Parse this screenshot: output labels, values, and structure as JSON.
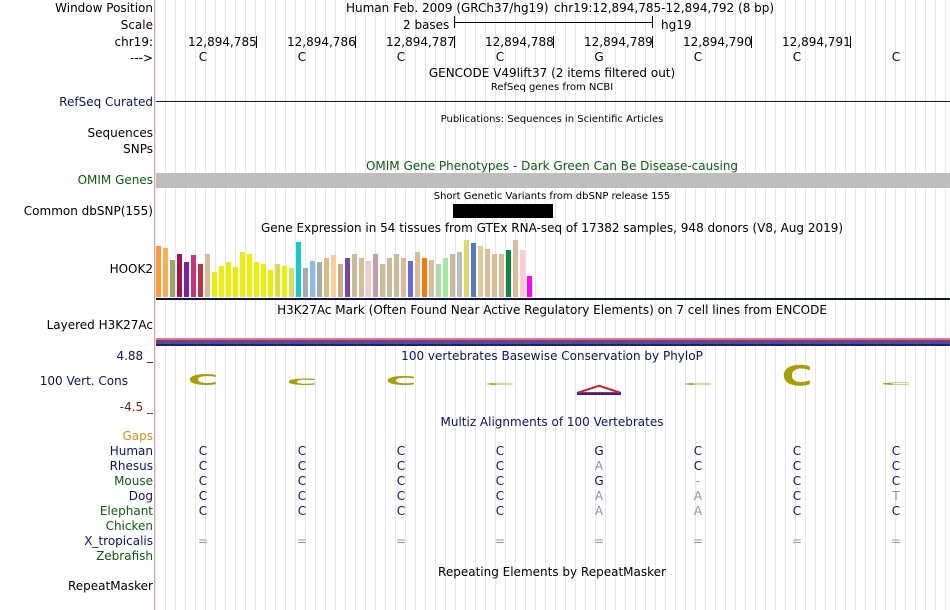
{
  "labels": {
    "window_position": "Window Position",
    "scale": "Scale",
    "chr": "chr19:",
    "arrow": "--->",
    "refseq": "RefSeq Curated",
    "sequences": "Sequences",
    "snps": "SNPs",
    "omim": "OMIM Genes",
    "dbsnp": "Common dbSNP(155)",
    "hook2": "HOOK2",
    "h3k27ac": "Layered H3K27Ac",
    "cons_max": "4.88 _",
    "cons": "100 Vert. Cons",
    "cons_min": "-4.5 _",
    "gaps": "Gaps"
  },
  "header": {
    "assembly": "Human Feb. 2009 (GRCh37/hg19)",
    "position": "chr19:12,894,785-12,894,792 (8 bp)",
    "scale_text": "2 bases",
    "scale_db": "hg19",
    "coords": [
      "12,894,785",
      "12,894,786",
      "12,894,787",
      "12,894,788",
      "12,894,789",
      "12,894,790",
      "12,894,791"
    ],
    "bases": [
      "C",
      "C",
      "C",
      "C",
      "G",
      "C",
      "C",
      "C"
    ]
  },
  "tracks": {
    "gencode": "GENCODE V49lift37 (2 items filtered out)",
    "refseq_sub": "RefSeq genes from NCBI",
    "publications": "Publications: Sequences in Scientific Articles",
    "omim_title": "OMIM Gene Phenotypes - Dark Green Can Be Disease-causing",
    "dbsnp_title": "Short Genetic Variants from dbSNP release 155",
    "gtex_title": "Gene Expression in 54 tissues from GTEx RNA-seq of 17382 samples, 948 donors (V8, Aug 2019)",
    "h3k27ac_title": "H3K27Ac Mark (Often Found Near Active Regulatory Elements) on 7 cell lines from ENCODE",
    "phylop_title": "100 vertebrates Basewise Conservation by PhyloP",
    "multiz_title": "Multiz Alignments of 100 Vertebrates",
    "repeat_title": "Repeating Elements by RepeatMasker",
    "repeat_label": "RepeatMasker"
  },
  "alignment": [
    {
      "species": "Human",
      "color": "#101070",
      "bases": [
        "C",
        "C",
        "C",
        "C",
        "G",
        "C",
        "C",
        "C"
      ]
    },
    {
      "species": "Rhesus",
      "color": "#101070",
      "bases": [
        "C",
        "C",
        "C",
        "C",
        "A",
        "C",
        "C",
        "C"
      ]
    },
    {
      "species": "Mouse",
      "color": "#0a5d0a",
      "bases": [
        "C",
        "C",
        "C",
        "C",
        "G",
        "-",
        "C",
        "C"
      ]
    },
    {
      "species": "Dog",
      "color": "#101070",
      "bases": [
        "C",
        "C",
        "C",
        "C",
        "A",
        "A",
        "C",
        "T"
      ]
    },
    {
      "species": "Elephant",
      "color": "#0a5d0a",
      "bases": [
        "C",
        "C",
        "C",
        "C",
        "A",
        "A",
        "C",
        "C"
      ]
    },
    {
      "species": "Chicken",
      "color": "#0a5d0a",
      "bases": [
        "",
        "",
        "",
        "",
        "",
        "",
        "",
        ""
      ]
    },
    {
      "species": "X_tropicalis",
      "color": "#101070",
      "bases": [
        "=",
        "=",
        "=",
        "=",
        "=",
        "=",
        "=",
        "="
      ]
    },
    {
      "species": "Zebrafish",
      "color": "#0a5d0a",
      "bases": [
        "",
        "",
        "",
        "",
        "",
        "",
        "",
        ""
      ]
    }
  ],
  "alignment_dim": [
    [
      false,
      false,
      false,
      false,
      false,
      false,
      false,
      false
    ],
    [
      false,
      false,
      false,
      false,
      true,
      false,
      false,
      false
    ],
    [
      false,
      false,
      false,
      false,
      false,
      true,
      false,
      false
    ],
    [
      false,
      false,
      false,
      false,
      true,
      true,
      false,
      true
    ],
    [
      false,
      false,
      false,
      false,
      true,
      true,
      false,
      false
    ],
    [
      false,
      false,
      false,
      false,
      false,
      false,
      false,
      false
    ],
    [
      true,
      true,
      true,
      true,
      true,
      true,
      true,
      true
    ],
    [
      false,
      false,
      false,
      false,
      false,
      false,
      false,
      false
    ]
  ],
  "gtex": {
    "values": [
      0.85,
      0.82,
      0.62,
      0.72,
      0.58,
      0.7,
      0.55,
      0.72,
      0.42,
      0.52,
      0.58,
      0.5,
      0.75,
      0.72,
      0.58,
      0.55,
      0.45,
      0.55,
      0.52,
      0.48,
      0.92,
      0.48,
      0.6,
      0.58,
      0.65,
      0.7,
      0.55,
      0.65,
      0.72,
      0.65,
      0.6,
      0.72,
      0.55,
      0.65,
      0.72,
      0.65,
      0.6,
      0.75,
      0.65,
      0.62,
      0.55,
      0.65,
      0.72,
      0.75,
      0.95,
      0.9,
      0.85,
      0.8,
      0.72,
      0.72,
      0.78,
      0.95,
      0.78,
      0.35
    ],
    "colors": [
      "#ff9933",
      "#ffaa55",
      "#99aa66",
      "#aa1155",
      "#7722aa",
      "#cc3377",
      "#bb3344",
      "#ddbb99",
      "#eeee00",
      "#eeee00",
      "#eeee00",
      "#eeee00",
      "#eeee00",
      "#eeee00",
      "#eeee00",
      "#eeee00",
      "#eeee00",
      "#dddd44",
      "#eeee00",
      "#dddd66",
      "#11cccc",
      "#aaaaaa",
      "#88bbee",
      "#aaaaaa",
      "#ddbb88",
      "#ffcc99",
      "#ccaa88",
      "#7744aa",
      "#ccbb99",
      "#ddbb99",
      "#eecccc",
      "#cc99aa",
      "#ccbb99",
      "#ccbb99",
      "#ccbb99",
      "#ddbb99",
      "#6666ee",
      "#ddbb99",
      "#ff7700",
      "#ddbb99",
      "#aaddaa",
      "#99ee99",
      "#ccbb99",
      "#bbbbbb",
      "#dddd66",
      "#5577cc",
      "#ddcc99",
      "#ddbb99",
      "#ddbb99",
      "#ddbb99",
      "#118844",
      "#ddbb99",
      "#ffcccc",
      "#ff00ff"
    ]
  },
  "phylop": {
    "values": [
      0.9,
      0.5,
      0.7,
      0.15,
      -0.6,
      0.1,
      1.6,
      0.2
    ]
  }
}
